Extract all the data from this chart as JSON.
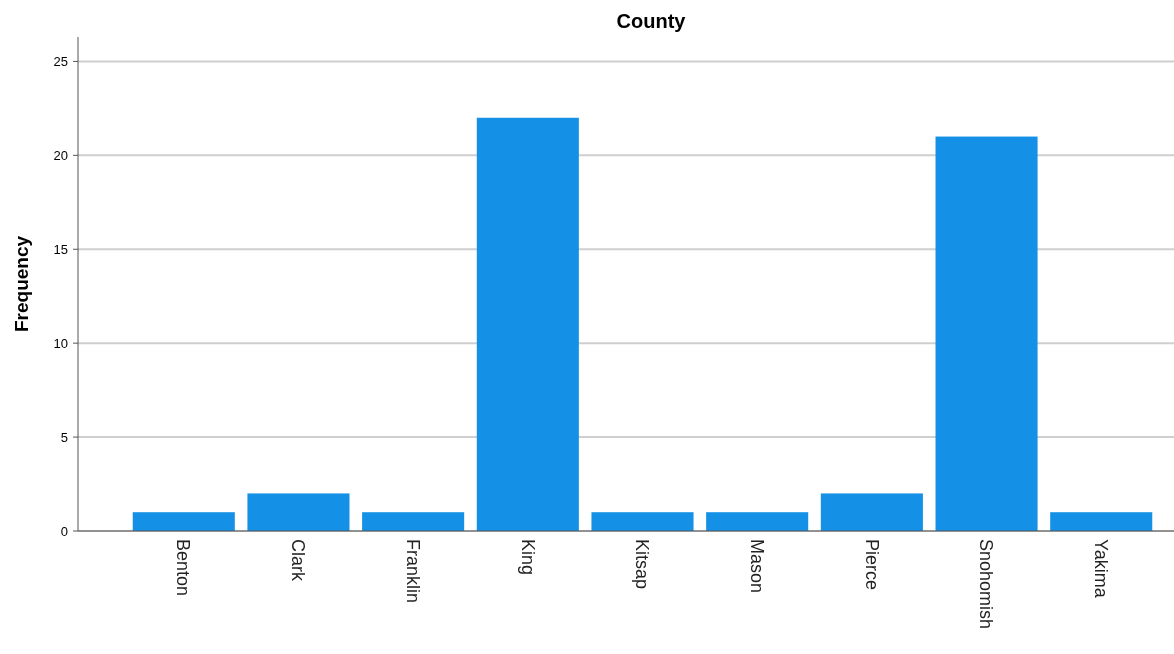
{
  "chart_data": {
    "type": "bar",
    "title": "County",
    "ylabel": "Frequency",
    "categories": [
      "Benton",
      "Clark",
      "Franklin",
      "King",
      "Kitsap",
      "Mason",
      "Pierce",
      "Snohomish",
      "Yakima"
    ],
    "values": [
      1,
      2,
      1,
      22,
      1,
      1,
      2,
      21,
      1
    ],
    "color": "#1490e6",
    "ylim": [
      0,
      26.3
    ],
    "yticks": [
      0,
      5,
      10,
      15,
      20,
      25
    ],
    "grid": "y"
  }
}
